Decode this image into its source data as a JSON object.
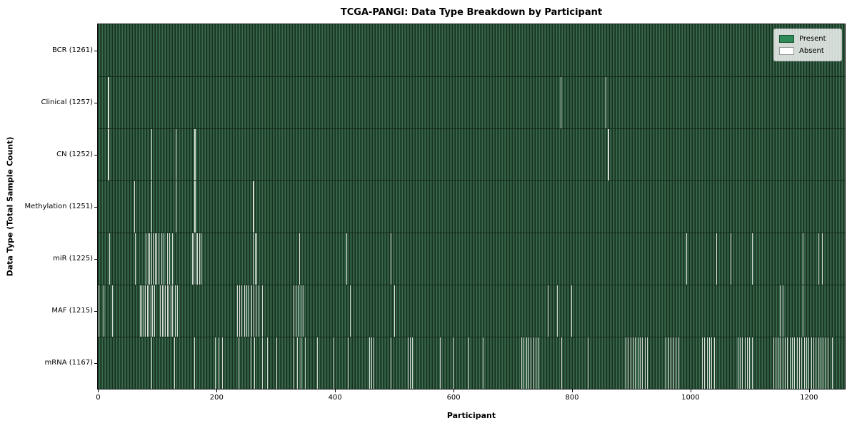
{
  "title": "TCGA-PANGI: Data Type Breakdown by Participant",
  "chart_data": {
    "type": "heatmap",
    "title": "TCGA-PANGI: Data Type Breakdown by Participant",
    "xlabel": "Participant",
    "ylabel": "Data Type (Total Sample Count)",
    "x_ticks": [
      0,
      200,
      400,
      600,
      800,
      1000,
      1200
    ],
    "xlim": [
      -0.5,
      1260.5
    ],
    "n_participants": 1261,
    "grid": false,
    "colors": {
      "present": "#2e8b57",
      "absent": "#ffffff",
      "absent_line_render": "#d7ded7"
    },
    "legend": {
      "position": "upper right",
      "entries": [
        {
          "label": "Present",
          "color": "#2e8b57"
        },
        {
          "label": "Absent",
          "color": "#ffffff"
        }
      ]
    },
    "rows": [
      {
        "name": "BCR",
        "label": "BCR (1261)",
        "total": 1261,
        "absent": []
      },
      {
        "name": "Clinical",
        "label": "Clinical (1257)",
        "total": 1257,
        "absent": [
          17,
          18,
          781,
          857
        ]
      },
      {
        "name": "CN",
        "label": "CN (1252)",
        "total": 1252,
        "absent": [
          17,
          18,
          90,
          131,
          132,
          163,
          164,
          861,
          862
        ]
      },
      {
        "name": "Methylation",
        "label": "Methylation (1251)",
        "total": 1251,
        "absent": [
          61,
          62,
          90,
          91,
          131,
          132,
          163,
          164,
          262,
          263
        ]
      },
      {
        "name": "miR",
        "label": "miR (1225)",
        "total": 1225,
        "absent": [
          19,
          63,
          81,
          84,
          87,
          90,
          93,
          96,
          99,
          103,
          107,
          111,
          117,
          121,
          126,
          159,
          162,
          165,
          168,
          171,
          174,
          262,
          265,
          268,
          340,
          420,
          494,
          993,
          1044,
          1068,
          1104,
          1190,
          1216,
          1217,
          1222,
          1223
        ]
      },
      {
        "name": "MAF",
        "label": "MAF (1215)",
        "total": 1215,
        "absent": [
          1,
          10,
          24,
          71,
          74,
          77,
          80,
          83,
          86,
          89,
          92,
          95,
          105,
          108,
          111,
          114,
          117,
          120,
          123,
          126,
          130,
          134,
          235,
          239,
          243,
          247,
          251,
          255,
          259,
          263,
          267,
          271,
          277,
          330,
          334,
          338,
          342,
          346,
          426,
          500,
          759,
          775,
          799,
          1152,
          1156,
          1190
        ]
      },
      {
        "name": "mRNA",
        "label": "mRNA (1167)",
        "total": 1167,
        "absent": [
          91,
          129,
          163,
          198,
          204,
          210,
          238,
          258,
          264,
          277,
          286,
          301,
          330,
          336,
          342,
          350,
          370,
          398,
          422,
          458,
          462,
          466,
          494,
          523,
          527,
          530,
          578,
          599,
          626,
          650,
          715,
          719,
          723,
          727,
          731,
          735,
          739,
          743,
          783,
          827,
          891,
          895,
          899,
          903,
          907,
          911,
          915,
          919,
          923,
          927,
          959,
          963,
          967,
          971,
          975,
          980,
          1020,
          1024,
          1028,
          1032,
          1036,
          1040,
          1080,
          1084,
          1088,
          1092,
          1096,
          1100,
          1104,
          1140,
          1144,
          1148,
          1152,
          1156,
          1160,
          1164,
          1168,
          1172,
          1176,
          1180,
          1184,
          1188,
          1192,
          1196,
          1200,
          1204,
          1208,
          1212,
          1216,
          1220,
          1224,
          1228,
          1232,
          1240
        ]
      }
    ]
  }
}
